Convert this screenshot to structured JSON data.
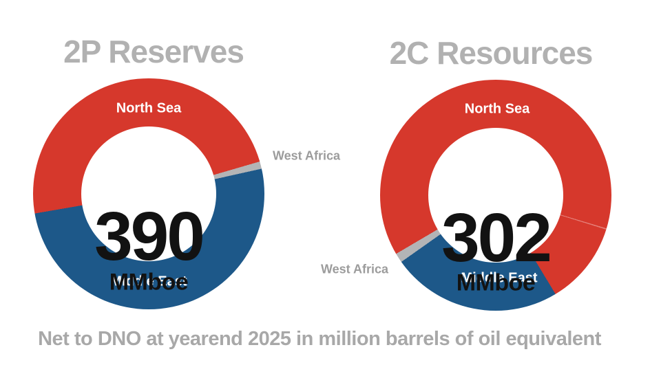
{
  "page": {
    "background": "#ffffff",
    "caption": "Net to DNO at yearend 2025 in million barrels of oil equivalent"
  },
  "colors": {
    "north_sea_red": "#d6382c",
    "middle_east_blue": "#1d5889",
    "west_africa_gray": "#b3b4b6",
    "title_gray": "#b1b1b1",
    "outside_label_gray": "#9c9c9c",
    "caption_gray": "#a8a8a8",
    "center_number_black": "#121212"
  },
  "chart_data": [
    {
      "type": "donut",
      "title": "2P Reserves",
      "center_value": "390",
      "center_unit": "MMboe",
      "total_mmboe": 390,
      "start_angle_deg": 260.2,
      "segments": [
        {
          "label": "North Sea",
          "value_mmboe": 188,
          "color": "#d6382c",
          "label_placement": "inside-top"
        },
        {
          "label": "West Africa",
          "value_mmboe": 4,
          "color": "#b3b4b6",
          "label_placement": "outside-right"
        },
        {
          "label": "Middle East",
          "value_mmboe": 198,
          "color": "#1d5889",
          "label_placement": "inside-bottom"
        }
      ]
    },
    {
      "type": "donut",
      "title": "2C Resources",
      "center_value": "302",
      "center_unit": "MMboe",
      "total_mmboe": 302,
      "start_angle_deg": 239.5,
      "faint_divider_deg": 107,
      "segments": [
        {
          "label": "North Sea",
          "value_mmboe": 226,
          "color": "#d6382c",
          "label_placement": "inside-top"
        },
        {
          "label": "Middle East",
          "value_mmboe": 72,
          "color": "#1d5889",
          "label_placement": "inside-bottom"
        },
        {
          "label": "West Africa",
          "value_mmboe": 4,
          "color": "#b3b4b6",
          "label_placement": "outside-left"
        }
      ]
    }
  ]
}
